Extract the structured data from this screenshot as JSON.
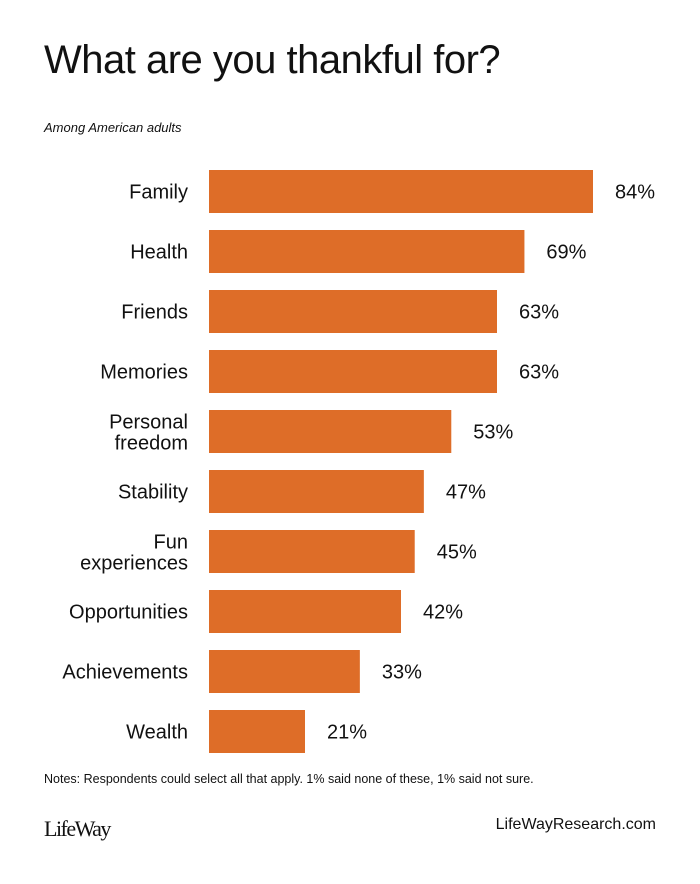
{
  "title": "What are you thankful for?",
  "subtitle": "Among American adults",
  "notes": "Notes: Respondents could select all that apply.  1% said none of these, 1% said not sure.",
  "footer": {
    "logo": "LifeWay",
    "site": "LifeWayResearch.com"
  },
  "colors": {
    "bar": "#DE6D28",
    "text": "#111111"
  },
  "chart_data": {
    "type": "bar",
    "orientation": "horizontal",
    "title": "What are you thankful for?",
    "categories": [
      [
        "Family"
      ],
      [
        "Health"
      ],
      [
        "Friends"
      ],
      [
        "Memories"
      ],
      [
        "Personal",
        "freedom"
      ],
      [
        "Stability"
      ],
      [
        "Fun",
        "experiences"
      ],
      [
        "Opportunities"
      ],
      [
        "Achievements"
      ],
      [
        "Wealth"
      ]
    ],
    "values": [
      84,
      69,
      63,
      63,
      53,
      47,
      45,
      42,
      33,
      21
    ],
    "value_labels": [
      "84%",
      "69%",
      "63%",
      "63%",
      "53%",
      "47%",
      "45%",
      "42%",
      "33%",
      "21%"
    ],
    "xlabel": "",
    "ylabel": "",
    "xlim": [
      0,
      100
    ],
    "grid": false
  }
}
